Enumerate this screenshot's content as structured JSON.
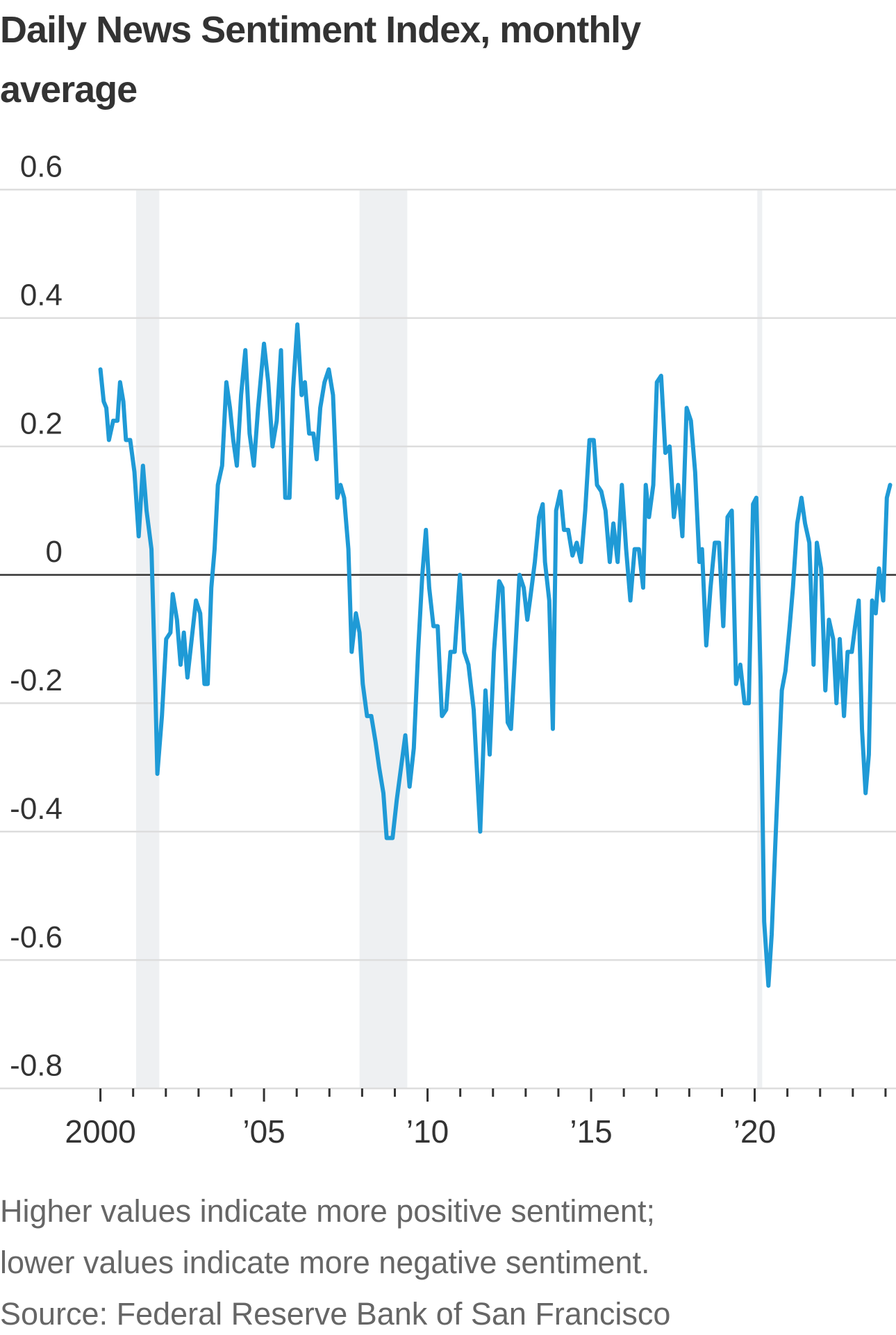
{
  "chart_data": {
    "type": "line",
    "title": "Daily News Sentiment Index, monthly average",
    "note_lines": [
      "Higher values indicate more positive sentiment;",
      "lower values indicate more negative sentiment.",
      "Source: Federal Reserve Bank of San Francisco"
    ],
    "x": [
      2000.0,
      2000.1,
      2000.18,
      2000.26,
      2000.39,
      2000.52,
      2000.6,
      2000.7,
      2000.78,
      2000.91,
      2001.04,
      2001.17,
      2001.3,
      2001.41,
      2001.56,
      2001.67,
      2001.74,
      2001.88,
      2002.01,
      2002.14,
      2002.21,
      2002.34,
      2002.45,
      2002.55,
      2002.66,
      2002.79,
      2002.92,
      2003.05,
      2003.18,
      2003.28,
      2003.39,
      2003.49,
      2003.59,
      2003.72,
      2003.85,
      2003.96,
      2004.06,
      2004.17,
      2004.3,
      2004.43,
      2004.56,
      2004.69,
      2004.82,
      2005.0,
      2005.13,
      2005.26,
      2005.39,
      2005.52,
      2005.65,
      2005.78,
      2005.89,
      2006.02,
      2006.15,
      2006.25,
      2006.38,
      2006.51,
      2006.61,
      2006.72,
      2006.85,
      2006.98,
      2007.11,
      2007.24,
      2007.34,
      2007.45,
      2007.58,
      2007.68,
      2007.81,
      2007.92,
      2008.02,
      2008.15,
      2008.28,
      2008.41,
      2008.52,
      2008.65,
      2008.75,
      2008.93,
      2009.06,
      2009.19,
      2009.32,
      2009.45,
      2009.58,
      2009.71,
      2009.84,
      2009.95,
      2010.05,
      2010.18,
      2010.31,
      2010.44,
      2010.57,
      2010.7,
      2010.83,
      2010.99,
      2011.12,
      2011.25,
      2011.41,
      2011.61,
      2011.77,
      2011.9,
      2012.03,
      2012.19,
      2012.29,
      2012.45,
      2012.55,
      2012.68,
      2012.81,
      2012.94,
      2013.05,
      2013.13,
      2013.28,
      2013.41,
      2013.52,
      2013.59,
      2013.72,
      2013.83,
      2013.93,
      2014.06,
      2014.17,
      2014.3,
      2014.43,
      2014.56,
      2014.69,
      2014.82,
      2014.95,
      2015.08,
      2015.18,
      2015.31,
      2015.44,
      2015.57,
      2015.68,
      2015.81,
      2015.94,
      2016.07,
      2016.2,
      2016.33,
      2016.46,
      2016.59,
      2016.67,
      2016.77,
      2016.9,
      2017.01,
      2017.14,
      2017.27,
      2017.4,
      2017.53,
      2017.66,
      2017.79,
      2017.92,
      2018.05,
      2018.18,
      2018.31,
      2018.39,
      2018.52,
      2018.65,
      2018.78,
      2018.91,
      2019.04,
      2019.17,
      2019.3,
      2019.43,
      2019.56,
      2019.69,
      2019.82,
      2019.95,
      2020.05,
      2020.18,
      2020.29,
      2020.42,
      2020.52,
      2020.63,
      2020.73,
      2020.83,
      2020.94,
      2021.07,
      2021.17,
      2021.3,
      2021.43,
      2021.54,
      2021.67,
      2021.8,
      2021.9,
      2022.03,
      2022.16,
      2022.27,
      2022.4,
      2022.5,
      2022.6,
      2022.73,
      2022.84,
      2022.97,
      2023.07,
      2023.18,
      2023.28,
      2023.39,
      2023.49,
      2023.59,
      2023.7,
      2023.8,
      2023.93,
      2024.04,
      2024.14
    ],
    "series": [
      {
        "color": "#1f9ad6",
        "values": [
          0.32,
          0.27,
          0.26,
          0.21,
          0.24,
          0.24,
          0.3,
          0.27,
          0.21,
          0.21,
          0.16,
          0.06,
          0.17,
          0.1,
          0.04,
          -0.16,
          -0.31,
          -0.22,
          -0.1,
          -0.09,
          -0.03,
          -0.07,
          -0.14,
          -0.09,
          -0.16,
          -0.1,
          -0.04,
          -0.06,
          -0.17,
          -0.17,
          -0.02,
          0.04,
          0.14,
          0.17,
          0.3,
          0.26,
          0.21,
          0.17,
          0.28,
          0.35,
          0.22,
          0.17,
          0.26,
          0.36,
          0.3,
          0.2,
          0.24,
          0.35,
          0.12,
          0.12,
          0.29,
          0.39,
          0.28,
          0.3,
          0.22,
          0.22,
          0.18,
          0.26,
          0.3,
          0.32,
          0.28,
          0.12,
          0.14,
          0.12,
          0.04,
          -0.12,
          -0.06,
          -0.09,
          -0.17,
          -0.22,
          -0.22,
          -0.26,
          -0.3,
          -0.34,
          -0.41,
          -0.41,
          -0.35,
          -0.3,
          -0.25,
          -0.33,
          -0.27,
          -0.12,
          0.0,
          0.07,
          -0.02,
          -0.08,
          -0.08,
          -0.22,
          -0.21,
          -0.12,
          -0.12,
          0.0,
          -0.12,
          -0.14,
          -0.21,
          -0.4,
          -0.18,
          -0.28,
          -0.12,
          -0.01,
          -0.02,
          -0.23,
          -0.24,
          -0.12,
          0.0,
          -0.02,
          -0.07,
          -0.04,
          0.02,
          0.09,
          0.11,
          0.02,
          -0.04,
          -0.24,
          0.1,
          0.13,
          0.07,
          0.07,
          0.03,
          0.05,
          0.02,
          0.1,
          0.21,
          0.21,
          0.14,
          0.13,
          0.1,
          0.02,
          0.08,
          0.02,
          0.14,
          0.04,
          -0.04,
          0.04,
          0.04,
          -0.02,
          0.14,
          0.09,
          0.14,
          0.3,
          0.31,
          0.19,
          0.2,
          0.09,
          0.14,
          0.06,
          0.26,
          0.24,
          0.16,
          0.02,
          0.04,
          -0.11,
          -0.02,
          0.05,
          0.05,
          -0.08,
          0.09,
          0.1,
          -0.17,
          -0.14,
          -0.2,
          -0.2,
          0.11,
          0.12,
          -0.16,
          -0.54,
          -0.64,
          -0.56,
          -0.42,
          -0.3,
          -0.18,
          -0.15,
          -0.08,
          -0.02,
          0.08,
          0.12,
          0.08,
          0.05,
          -0.14,
          0.05,
          0.01,
          -0.18,
          -0.07,
          -0.1,
          -0.2,
          -0.1,
          -0.22,
          -0.12,
          -0.12,
          -0.08,
          -0.04,
          -0.24,
          -0.34,
          -0.28,
          -0.04,
          -0.06,
          0.01,
          -0.04,
          0.12,
          0.14
        ]
      }
    ],
    "shaded_spans": [
      [
        2001.09,
        2001.8
      ],
      [
        2007.92,
        2009.38
      ],
      [
        2020.08,
        2020.23
      ]
    ],
    "shade_color": "#eef0f2",
    "xlim": [
      1996.93,
      2024.32
    ],
    "xticks": [
      2000,
      {
        "value": 2005,
        "label": "’05"
      },
      {
        "value": 2010,
        "label": "’10"
      },
      {
        "value": 2015,
        "label": "’15"
      },
      {
        "value": 2020,
        "label": "’20"
      }
    ],
    "xticks_minor": [
      2001,
      2002,
      2003,
      2004,
      2006,
      2007,
      2008,
      2009,
      2011,
      2012,
      2013,
      2014,
      2016,
      2017,
      2018,
      2019,
      2021,
      2022,
      2023,
      2024
    ],
    "ylim": [
      -0.8,
      0.6
    ],
    "yticks": [
      0.6,
      0.4,
      0.2,
      0,
      -0.2,
      -0.4,
      -0.6,
      -0.8
    ],
    "grid": true
  }
}
